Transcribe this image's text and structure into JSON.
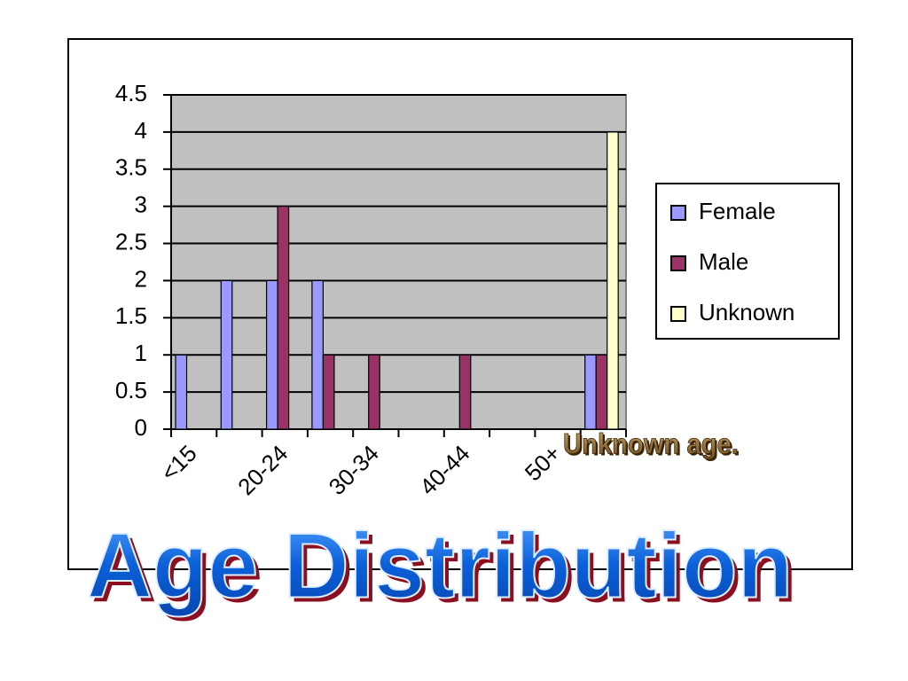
{
  "chart_data": {
    "type": "bar",
    "title": "Age Distribution",
    "annotation": "Unknown age.",
    "categories": [
      "<15",
      null,
      "20-24",
      null,
      "30-34",
      null,
      "40-44",
      null,
      "50+",
      null
    ],
    "series": [
      {
        "name": "Female",
        "color": "#9999ff",
        "values": [
          1,
          2,
          2,
          2,
          0,
          0,
          0,
          0,
          0,
          1
        ]
      },
      {
        "name": "Male",
        "color": "#993366",
        "values": [
          0,
          0,
          3,
          1,
          1,
          0,
          1,
          0,
          0,
          1
        ]
      },
      {
        "name": "Unknown",
        "color": "#ffffcc",
        "values": [
          0,
          0,
          0,
          0,
          0,
          0,
          0,
          0,
          0,
          4
        ]
      }
    ],
    "ylim": [
      0,
      4.5
    ],
    "yticks": [
      0,
      0.5,
      1,
      1.5,
      2,
      2.5,
      3,
      3.5,
      4,
      4.5
    ],
    "grid": true,
    "legend": "right",
    "plot_background": "#c0c0c0"
  }
}
